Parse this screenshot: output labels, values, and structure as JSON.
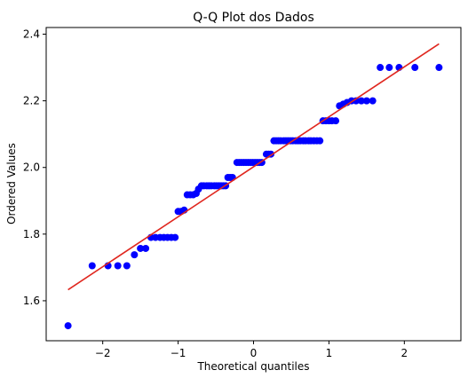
{
  "chart_data": {
    "type": "scatter",
    "title": "Q-Q Plot dos Dados",
    "xlabel": "Theoretical quantiles",
    "ylabel": "Ordered Values",
    "xlim": [
      -2.75,
      2.75
    ],
    "ylim": [
      1.48,
      2.42
    ],
    "x_ticks": [
      -2,
      -1,
      0,
      1,
      2
    ],
    "x_tick_labels": [
      "−2",
      "−1",
      "0",
      "1",
      "2"
    ],
    "y_ticks": [
      1.6,
      1.8,
      2.0,
      2.2,
      2.4
    ],
    "y_tick_labels": [
      "1.6",
      "1.8",
      "2.0",
      "2.2",
      "2.4"
    ],
    "grid": false,
    "series": [
      {
        "kind": "points",
        "color": "#0000ff",
        "points": [
          [
            -2.46,
            1.525
          ],
          [
            -2.14,
            1.705
          ],
          [
            -1.93,
            1.705
          ],
          [
            -1.8,
            1.705
          ],
          [
            -1.68,
            1.705
          ],
          [
            -1.58,
            1.738
          ],
          [
            -1.5,
            1.757
          ],
          [
            -1.43,
            1.757
          ],
          [
            -1.36,
            1.79
          ],
          [
            -1.3,
            1.79
          ],
          [
            -1.24,
            1.79
          ],
          [
            -1.19,
            1.79
          ],
          [
            -1.14,
            1.79
          ],
          [
            -1.09,
            1.79
          ],
          [
            -1.04,
            1.79
          ],
          [
            -1.0,
            1.868
          ],
          [
            -0.96,
            1.868
          ],
          [
            -0.92,
            1.872
          ],
          [
            -0.88,
            1.918
          ],
          [
            -0.84,
            1.918
          ],
          [
            -0.8,
            1.918
          ],
          [
            -0.76,
            1.922
          ],
          [
            -0.73,
            1.935
          ],
          [
            -0.69,
            1.945
          ],
          [
            -0.66,
            1.945
          ],
          [
            -0.62,
            1.945
          ],
          [
            -0.59,
            1.945
          ],
          [
            -0.56,
            1.945
          ],
          [
            -0.52,
            1.945
          ],
          [
            -0.49,
            1.945
          ],
          [
            -0.46,
            1.945
          ],
          [
            -0.43,
            1.945
          ],
          [
            -0.4,
            1.945
          ],
          [
            -0.37,
            1.945
          ],
          [
            -0.34,
            1.97
          ],
          [
            -0.31,
            1.97
          ],
          [
            -0.28,
            1.97
          ],
          [
            -0.22,
            2.015
          ],
          [
            -0.19,
            2.015
          ],
          [
            -0.16,
            2.015
          ],
          [
            -0.13,
            2.015
          ],
          [
            -0.1,
            2.015
          ],
          [
            -0.07,
            2.015
          ],
          [
            -0.04,
            2.015
          ],
          [
            -0.01,
            2.015
          ],
          [
            0.02,
            2.015
          ],
          [
            0.05,
            2.015
          ],
          [
            0.08,
            2.015
          ],
          [
            0.11,
            2.015
          ],
          [
            0.17,
            2.04
          ],
          [
            0.2,
            2.04
          ],
          [
            0.23,
            2.04
          ],
          [
            0.27,
            2.08
          ],
          [
            0.3,
            2.08
          ],
          [
            0.33,
            2.08
          ],
          [
            0.36,
            2.08
          ],
          [
            0.4,
            2.08
          ],
          [
            0.43,
            2.08
          ],
          [
            0.46,
            2.08
          ],
          [
            0.49,
            2.08
          ],
          [
            0.52,
            2.08
          ],
          [
            0.56,
            2.08
          ],
          [
            0.59,
            2.08
          ],
          [
            0.62,
            2.08
          ],
          [
            0.66,
            2.08
          ],
          [
            0.69,
            2.08
          ],
          [
            0.73,
            2.08
          ],
          [
            0.76,
            2.08
          ],
          [
            0.8,
            2.08
          ],
          [
            0.84,
            2.08
          ],
          [
            0.88,
            2.08
          ],
          [
            0.92,
            2.14
          ],
          [
            0.96,
            2.14
          ],
          [
            1.0,
            2.14
          ],
          [
            1.04,
            2.14
          ],
          [
            1.09,
            2.14
          ],
          [
            1.14,
            2.185
          ],
          [
            1.19,
            2.19
          ],
          [
            1.24,
            2.195
          ],
          [
            1.3,
            2.2
          ],
          [
            1.36,
            2.2
          ],
          [
            1.43,
            2.2
          ],
          [
            1.5,
            2.2
          ],
          [
            1.58,
            2.2
          ],
          [
            1.68,
            2.3
          ],
          [
            1.8,
            2.3
          ],
          [
            1.93,
            2.3
          ],
          [
            2.14,
            2.3
          ],
          [
            2.46,
            2.3
          ]
        ]
      },
      {
        "kind": "fit-line",
        "color": "#e0271f",
        "x": [
          -2.46,
          2.46
        ],
        "y": [
          1.633,
          2.371
        ]
      }
    ]
  }
}
